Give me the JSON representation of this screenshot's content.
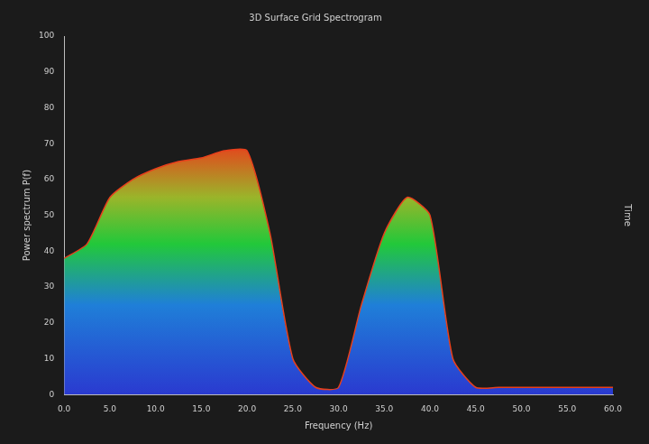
{
  "chart_data": {
    "type": "area",
    "title": "3D Surface Grid Spectrogram",
    "x_label": "Frequency (Hz)",
    "y_label": "Power spectrum P(f)",
    "z_label": "Time",
    "x": [
      0,
      2.5,
      5,
      7.5,
      10,
      12.5,
      15,
      17.5,
      20,
      22.5,
      25,
      27.5,
      30,
      32.5,
      35,
      37.5,
      40,
      42.5,
      45,
      47.5,
      50,
      52.5,
      55,
      57.5,
      60
    ],
    "values": [
      38,
      42,
      55,
      60,
      63,
      65,
      66,
      68,
      68,
      45,
      10,
      2,
      2,
      25,
      45,
      55,
      50,
      10,
      2,
      2,
      2,
      2,
      2,
      2,
      2
    ],
    "color": "#e8401c",
    "xlim": [
      0,
      60
    ],
    "xticks": [
      {
        "value": 0,
        "label": "0.0"
      },
      {
        "value": 5,
        "label": "5.0"
      },
      {
        "value": 10,
        "label": "10.0"
      },
      {
        "value": 15,
        "label": "15.0"
      },
      {
        "value": 20,
        "label": "20.0"
      },
      {
        "value": 25,
        "label": "25.0"
      },
      {
        "value": 30,
        "label": "30.0"
      },
      {
        "value": 35,
        "label": "35.0"
      },
      {
        "value": 40,
        "label": "40.0"
      },
      {
        "value": 45,
        "label": "45.0"
      },
      {
        "value": 50,
        "label": "50.0"
      },
      {
        "value": 55,
        "label": "55.0"
      },
      {
        "value": 60,
        "label": "60.0"
      }
    ],
    "ylim": [
      0,
      100
    ],
    "yticks": [
      0,
      10,
      20,
      30,
      40,
      50,
      60,
      70,
      80,
      90,
      100
    ],
    "grid": false
  }
}
